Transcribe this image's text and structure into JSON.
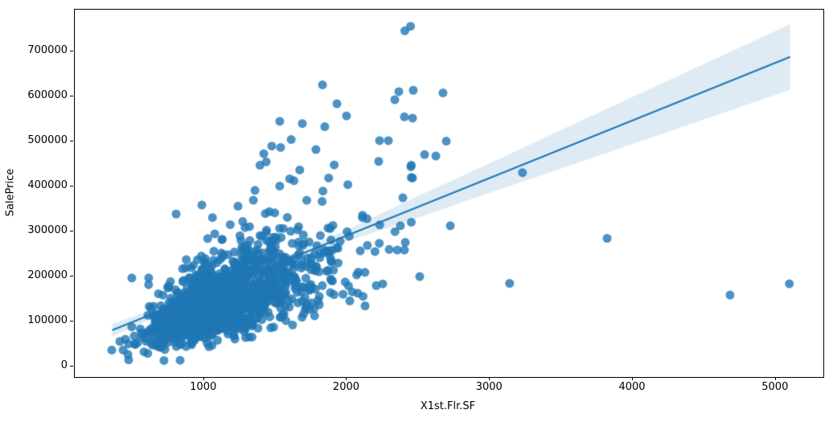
{
  "chart_data": {
    "type": "scatter",
    "title": "",
    "xlabel": "X1st.Flr.SF",
    "ylabel": "SalePrice",
    "xlim": [
      96,
      5333
    ],
    "ylim": [
      -24000,
      792000
    ],
    "xticks": [
      1000,
      2000,
      3000,
      4000,
      5000
    ],
    "yticks": [
      0,
      100000,
      200000,
      300000,
      400000,
      500000,
      600000,
      700000
    ],
    "grid": false,
    "legend": "none",
    "background_color": "#ffffff",
    "spine_color": "#000000",
    "marker": {
      "color": "#1f77b4",
      "alpha": 0.8,
      "radius": 5.5
    },
    "regression_line": {
      "color": "#1f77b4",
      "width": 2.2,
      "x": [
        358,
        5101
      ],
      "y": [
        80000,
        687000
      ]
    },
    "ci_band": {
      "color": "#1f77b4",
      "alpha": 0.15,
      "stations_x_halfwidth": [
        [
          358,
          14000
        ],
        [
          700,
          9000
        ],
        [
          1100,
          5500
        ],
        [
          1500,
          6500
        ],
        [
          2000,
          13000
        ],
        [
          2500,
          24000
        ],
        [
          3000,
          33000
        ],
        [
          3600,
          45000
        ],
        [
          4300,
          58000
        ],
        [
          5101,
          73000
        ]
      ]
    },
    "outlier_points": [
      [
        2405,
        745000
      ],
      [
        2445,
        755000
      ],
      [
        1829,
        625000
      ],
      [
        1930,
        583000
      ],
      [
        1997,
        556000
      ],
      [
        2363,
        610000
      ],
      [
        2464,
        613000
      ],
      [
        2672,
        607000
      ],
      [
        2335,
        592000
      ],
      [
        2402,
        554000
      ],
      [
        2459,
        551000
      ],
      [
        1530,
        544000
      ],
      [
        1688,
        539000
      ],
      [
        1845,
        532000
      ],
      [
        2228,
        501000
      ],
      [
        2290,
        501000
      ],
      [
        2695,
        500000
      ],
      [
        1474,
        489000
      ],
      [
        1536,
        486000
      ],
      [
        1418,
        472000
      ],
      [
        1435,
        454000
      ],
      [
        2543,
        470000
      ],
      [
        2622,
        467000
      ],
      [
        2222,
        455000
      ],
      [
        2447,
        443000
      ],
      [
        3228,
        430000
      ],
      [
        2459,
        418000
      ],
      [
        2391,
        374000
      ],
      [
        2374,
        312000
      ],
      [
        2723,
        312000
      ],
      [
        2408,
        275000
      ],
      [
        2352,
        258000
      ],
      [
        2402,
        258000
      ],
      [
        3820,
        284000
      ],
      [
        3138,
        184000
      ],
      [
        4680,
        158000
      ],
      [
        5095,
        183000
      ],
      [
        2509,
        199000
      ],
      [
        2205,
        179000
      ],
      [
        2080,
        209000
      ],
      [
        2037,
        165000
      ],
      [
        2076,
        162000
      ],
      [
        2020,
        145000
      ],
      [
        2127,
        134000
      ],
      [
        495,
        196000
      ],
      [
        613,
        196000
      ],
      [
        805,
        338000
      ],
      [
        985,
        358000
      ],
      [
        411,
        55000
      ],
      [
        535,
        52000
      ],
      [
        355,
        36000
      ],
      [
        434,
        36000
      ],
      [
        580,
        32000
      ],
      [
        473,
        14000
      ],
      [
        720,
        12800
      ],
      [
        833,
        13100
      ]
    ],
    "cloud": {
      "description": "dense overlapping cloud of ~1400 house records",
      "count": 1380,
      "seed": 12345,
      "x_log_mean": 7.02,
      "x_log_sd": 0.27,
      "x_min": 450,
      "x_max": 2450,
      "ratio_log_mean": 4.828,
      "ratio_log_sd": 0.31,
      "ratio_min": 45,
      "ratio_max": 340,
      "noise_sd": 13000,
      "y_min": 26000,
      "y_max": 530000
    }
  }
}
